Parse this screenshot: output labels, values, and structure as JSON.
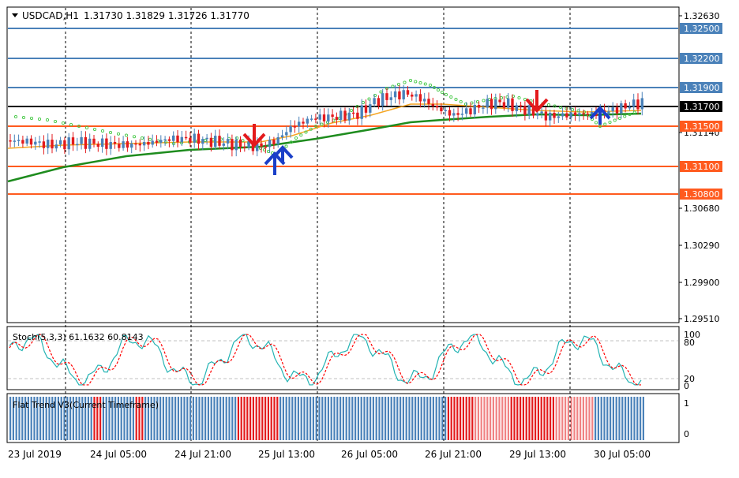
{
  "header": {
    "symbol": "USDCAD,H1",
    "ohlc": "1.31730 1.31829 1.31726 1.31770"
  },
  "price_axis": {
    "ticks": [
      "1.32630",
      "1.31140",
      "1.30680",
      "1.30290",
      "1.29900",
      "1.29510"
    ],
    "levels": [
      {
        "label": "1.32500",
        "value": 1.325,
        "color": "#4a81b9"
      },
      {
        "label": "1.32200",
        "value": 1.322,
        "color": "#4a81b9"
      },
      {
        "label": "1.31900",
        "value": 1.319,
        "color": "#4a81b9"
      },
      {
        "label": "1.31700",
        "value": 1.317,
        "color": "#000000"
      },
      {
        "label": "1.31500",
        "value": 1.315,
        "color": "#ff5a1e"
      },
      {
        "label": "1.31100",
        "value": 1.311,
        "color": "#ff5a1e"
      },
      {
        "label": "1.30800",
        "value": 1.308,
        "color": "#ff5a1e"
      }
    ]
  },
  "stoch": {
    "label": "Stoch(5,3,3) 61.1632 60.8143",
    "ticks": [
      "100",
      "80",
      "20",
      "0"
    ]
  },
  "flat_trend": {
    "label": "Flat Trend V3(Current Timeframe)",
    "ticks": [
      "1",
      "0"
    ]
  },
  "time_axis": {
    "labels": [
      "23 Jul 2019",
      "24 Jul 05:00",
      "24 Jul 21:00",
      "25 Jul 13:00",
      "26 Jul 05:00",
      "26 Jul 21:00",
      "29 Jul 13:00",
      "30 Jul 05:00"
    ]
  },
  "colors": {
    "bull": "#4a81b9",
    "bear": "#e31a1c",
    "ma_fast": "#f5a623",
    "ma_slow": "#1e8c1e",
    "dots": "#45c845",
    "stoch_main": "#22b3b3",
    "stoch_signal": "#ff0000"
  }
}
